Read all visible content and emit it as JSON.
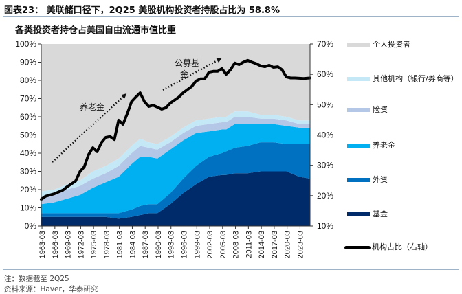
{
  "figure": {
    "label": "图表23：",
    "title": "美联储口径下，2Q25 美股机构投资者持股占比为 58.8%",
    "subtitle": "各类投资者持仓占美国自由流通市值比重",
    "note": "注：数据截至 2Q25",
    "source": "资料来源：Haver，华泰研究"
  },
  "chart_data": {
    "type": "area",
    "title": "各类投资者持仓占美国自由流通市值比重",
    "xlabel": "",
    "ylabel": "",
    "x_ticks": [
      "1963-03",
      "1966-03",
      "1969-03",
      "1972-03",
      "1975-03",
      "1978-03",
      "1981-03",
      "1984-03",
      "1987-03",
      "1990-03",
      "1993-03",
      "1996-03",
      "1999-03",
      "2002-03",
      "2005-03",
      "2008-03",
      "2011-03",
      "2014-03",
      "2017-03",
      "2020-03",
      "2023-03"
    ],
    "x_range": [
      1963.0,
      2025.5
    ],
    "y_left": {
      "ticks": [
        "0%",
        "10%",
        "20%",
        "30%",
        "40%",
        "50%",
        "60%",
        "70%",
        "80%",
        "90%",
        "100%"
      ],
      "range": [
        0,
        100
      ],
      "unit": "%"
    },
    "y_right": {
      "ticks": [
        "10%",
        "20%",
        "30%",
        "40%",
        "50%",
        "60%",
        "70%"
      ],
      "range": [
        10,
        70
      ],
      "unit": "%"
    },
    "grid": false,
    "legend_position": "right",
    "area_x": [
      1963,
      1966,
      1969,
      1972,
      1975,
      1978,
      1981,
      1984,
      1986,
      1988,
      1990,
      1993,
      1996,
      1999,
      2002,
      2005,
      2006,
      2008,
      2011,
      2014,
      2017,
      2020,
      2023,
      2025.5
    ],
    "stacked_series": [
      {
        "name": "基金",
        "color": "#002b6b",
        "values": [
          5,
          5,
          5,
          5,
          5,
          5,
          4,
          5,
          6,
          7,
          7,
          12,
          18,
          23,
          27,
          28,
          28,
          29,
          29,
          30,
          30,
          30,
          27,
          26
        ]
      },
      {
        "name": "外资",
        "color": "#0070c0",
        "values": [
          2,
          2,
          2,
          2,
          2,
          2,
          3,
          4,
          5,
          5,
          5,
          6,
          8,
          10,
          11,
          12,
          13,
          14,
          15,
          16,
          16,
          15,
          18,
          19
        ]
      },
      {
        "name": "养老金",
        "color": "#00b0f0",
        "values": [
          5,
          6,
          8,
          10,
          14,
          17,
          20,
          25,
          27,
          26,
          25,
          24,
          21,
          18,
          14,
          13,
          12,
          13,
          12,
          10,
          10,
          10,
          9,
          9
        ]
      },
      {
        "name": "险资",
        "color": "#b4c7e7",
        "values": [
          4,
          4,
          5,
          5,
          5,
          5,
          6,
          6,
          6,
          5,
          5,
          4,
          4,
          4,
          4,
          4,
          4,
          4,
          4,
          3,
          3,
          3,
          2,
          2
        ]
      },
      {
        "name": "其他机构（银行/券商等）",
        "color": "#c5e8f7",
        "values": [
          3,
          3,
          3,
          3,
          4,
          4,
          4,
          4,
          4,
          3,
          3,
          3,
          3,
          3,
          3,
          3,
          3,
          3,
          3,
          2,
          2,
          2,
          2,
          2
        ]
      },
      {
        "name": "个人投资者",
        "color": "#d9d9d9",
        "values": [
          81,
          80,
          77,
          75,
          70,
          67,
          63,
          56,
          52,
          54,
          55,
          51,
          46,
          42,
          41,
          40,
          40,
          37,
          37,
          39,
          39,
          40,
          42,
          42
        ]
      }
    ],
    "line_series": {
      "name": "机构占比（右轴）",
      "axis": "right",
      "color": "#000000",
      "x": [
        1963,
        1964,
        1966,
        1968,
        1969,
        1971,
        1972,
        1973,
        1974,
        1975,
        1976,
        1977,
        1978,
        1979,
        1980,
        1981,
        1982,
        1983,
        1984,
        1985,
        1986,
        1987,
        1988,
        1989,
        1990,
        1991,
        1992,
        1993,
        1994,
        1995,
        1996,
        1998,
        1999,
        2000,
        2001,
        2002,
        2003,
        2004,
        2005,
        2006,
        2007,
        2008,
        2009,
        2010,
        2011,
        2012,
        2013,
        2014,
        2015,
        2016,
        2017,
        2018,
        2019,
        2020,
        2021,
        2022,
        2023,
        2024,
        2025.5
      ],
      "values": [
        18.8,
        19.8,
        20.6,
        21.8,
        22.9,
        24.8,
        27.9,
        29.5,
        33.5,
        35.8,
        34.5,
        37.5,
        39.2,
        39.5,
        38.5,
        44.9,
        43.5,
        47.0,
        51.0,
        52.5,
        53.9,
        51.0,
        49.4,
        49.8,
        49.2,
        48.5,
        49.0,
        50.5,
        51.5,
        52.5,
        53.9,
        56.0,
        57.8,
        58.5,
        58.5,
        60.7,
        61.0,
        61.0,
        61.9,
        60.0,
        61.5,
        63.7,
        63.2,
        64.0,
        64.6,
        64.0,
        63.5,
        62.8,
        62.5,
        63.0,
        62.3,
        62.5,
        61.5,
        59.1,
        58.8,
        58.8,
        58.7,
        58.6,
        58.8
      ]
    },
    "annotations": [
      {
        "text": "养老金",
        "arrow": "dotted-up-right",
        "period": "1963-1986"
      },
      {
        "text": "公募基金",
        "arrow": "dotted-up-right",
        "period": "1990-2006"
      }
    ],
    "legend": [
      "个人投资者",
      "其他机构（银行/券商等）",
      "险资",
      "养老金",
      "外资",
      "基金",
      "机构占比（右轴）"
    ]
  }
}
